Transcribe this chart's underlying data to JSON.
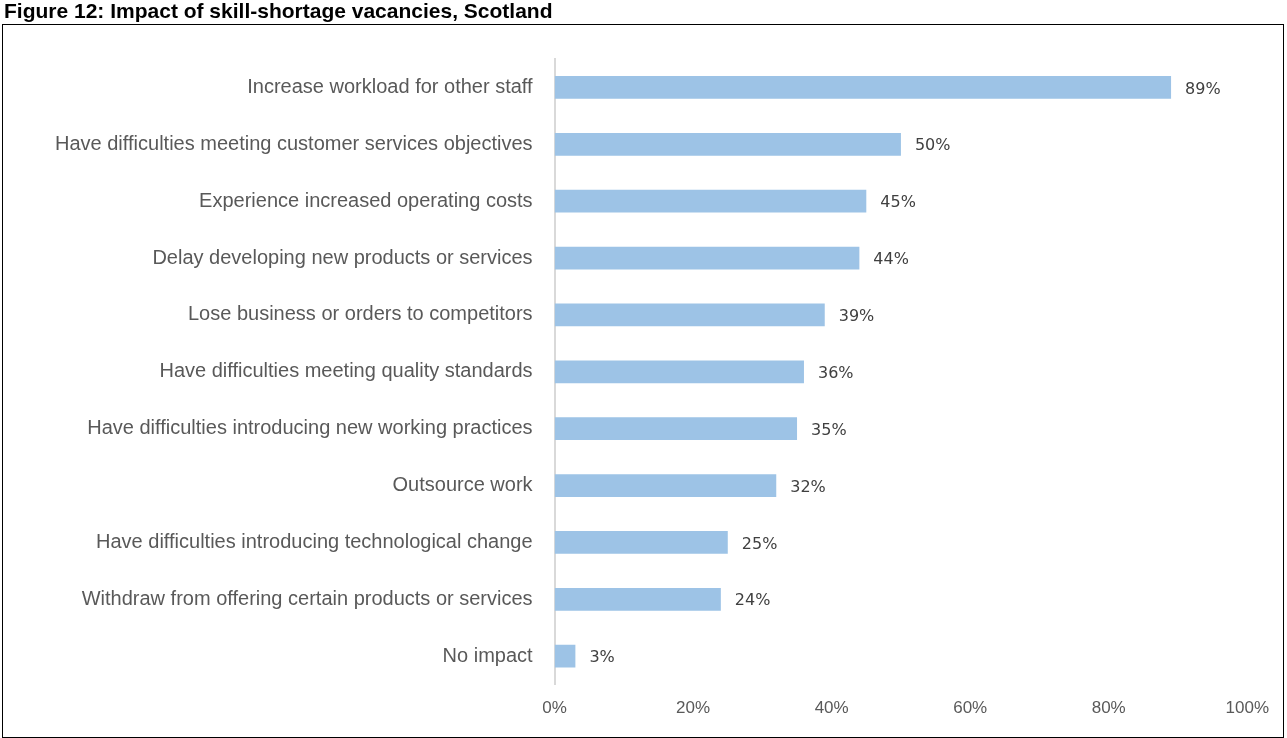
{
  "chart_data": {
    "type": "bar",
    "orientation": "horizontal",
    "title": "Figure 12: Impact of skill-shortage vacancies, Scotland",
    "categories": [
      "Increase workload for other staff",
      "Have difficulties meeting customer services objectives",
      "Experience increased operating costs",
      "Delay developing new products or services",
      "Lose business or orders to competitors",
      "Have difficulties meeting quality standards",
      "Have difficulties introducing new working practices",
      "Outsource work",
      "Have difficulties introducing technological change",
      "Withdraw from offering certain products or services",
      "No impact"
    ],
    "values": [
      89,
      50,
      45,
      44,
      39,
      36,
      35,
      32,
      25,
      24,
      3
    ],
    "value_labels": [
      "89%",
      "50%",
      "45%",
      "44%",
      "39%",
      "36%",
      "35%",
      "32%",
      "25%",
      "24%",
      "3%"
    ],
    "color": "#9dc3e6",
    "xlim": [
      0,
      100
    ],
    "xticks": [
      {
        "value": 0,
        "label": "0%"
      },
      {
        "value": 20,
        "label": "20%"
      },
      {
        "value": 40,
        "label": "40%"
      },
      {
        "value": 60,
        "label": "60%"
      },
      {
        "value": 80,
        "label": "80%"
      },
      {
        "value": 100,
        "label": "100%"
      }
    ],
    "grid": false,
    "legend": false
  }
}
